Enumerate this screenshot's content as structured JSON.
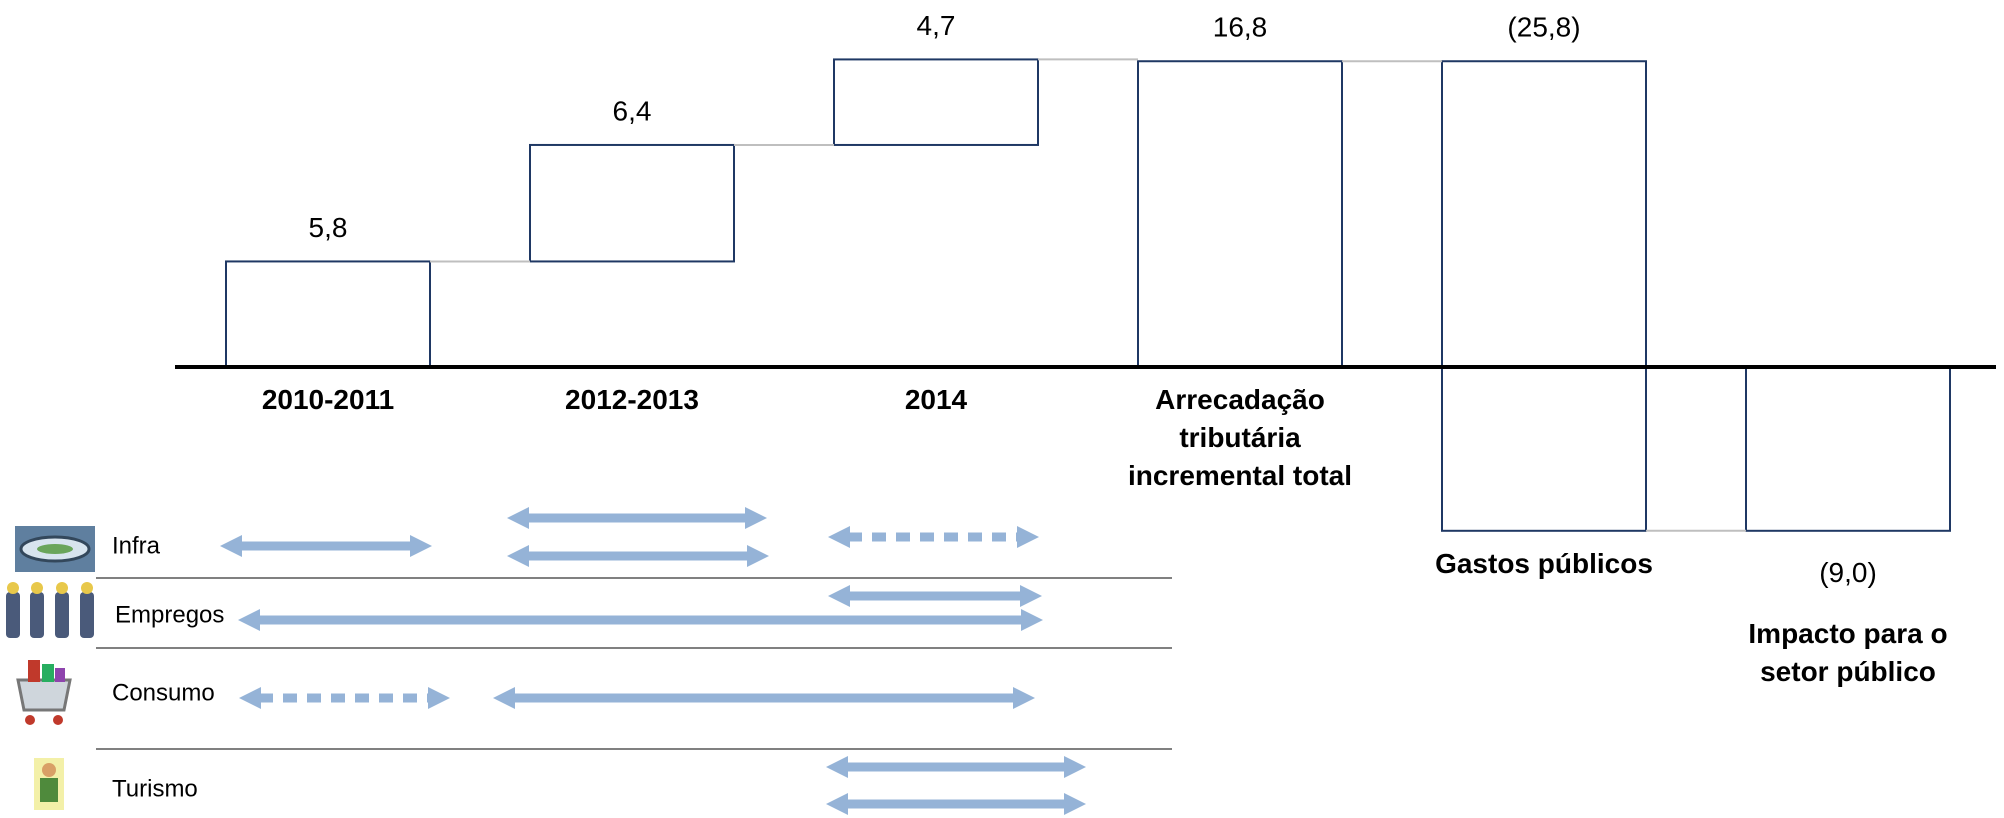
{
  "chart_data": {
    "type": "waterfall",
    "categories": [
      "2010-2011",
      "2012-2013",
      "2014",
      "Arrecadação tributária incremental total",
      "Gastos públicos",
      "Impacto para o setor público"
    ],
    "values": [
      5.8,
      6.4,
      4.7,
      16.8,
      -25.8,
      -9.0
    ],
    "value_labels": [
      "5,8",
      "6,4",
      "4,7",
      "16,8",
      "(25,8)",
      "(9,0)"
    ],
    "measures": [
      "relative",
      "relative",
      "relative",
      "total",
      "relative",
      "total"
    ],
    "ylim": [
      -10,
      20
    ],
    "color": "#1f3864"
  },
  "timeline": {
    "rows": [
      "Infra",
      "Empregos",
      "Consumo",
      "Turismo"
    ]
  }
}
